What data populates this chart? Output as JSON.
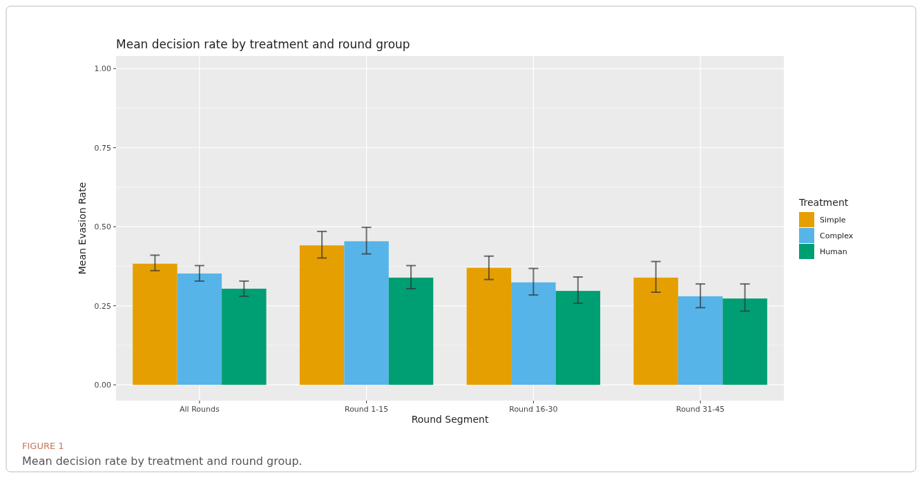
{
  "chart_data": {
    "type": "bar",
    "title": "Mean decision rate by treatment and round group",
    "xlabel": "Round Segment",
    "ylabel": "Mean Evasion Rate",
    "legend_title": "Treatment",
    "legend": "right",
    "grid": true,
    "categories": [
      "All Rounds",
      "Round 1-15",
      "Round 16-30",
      "Round 31-45"
    ],
    "ylim": [
      -0.05,
      1.04
    ],
    "yticks": [
      {
        "value": 0,
        "label": "0.00"
      },
      {
        "value": 0.25,
        "label": "0.25"
      },
      {
        "value": 0.5,
        "label": "0.50"
      },
      {
        "value": 0.75,
        "label": "0.75"
      },
      {
        "value": 1,
        "label": "1.00"
      }
    ],
    "series": [
      {
        "name": "Simple",
        "color": "#e69f00",
        "values": [
          0.383,
          0.441,
          0.37,
          0.339
        ],
        "errors": [
          [
            0.361,
            0.41
          ],
          [
            0.401,
            0.485
          ],
          [
            0.333,
            0.407
          ],
          [
            0.293,
            0.39
          ]
        ]
      },
      {
        "name": "Complex",
        "color": "#56b4e9",
        "values": [
          0.352,
          0.454,
          0.324,
          0.28
        ],
        "errors": [
          [
            0.328,
            0.377
          ],
          [
            0.414,
            0.498
          ],
          [
            0.284,
            0.368
          ],
          [
            0.244,
            0.319
          ]
        ]
      },
      {
        "name": "Human",
        "color": "#009e73",
        "values": [
          0.304,
          0.339,
          0.297,
          0.273
        ],
        "errors": [
          [
            0.28,
            0.328
          ],
          [
            0.304,
            0.377
          ],
          [
            0.258,
            0.341
          ],
          [
            0.233,
            0.319
          ]
        ]
      }
    ],
    "annotations": [
      "FIGURE 1",
      "Mean decision rate by treatment and round group."
    ]
  }
}
